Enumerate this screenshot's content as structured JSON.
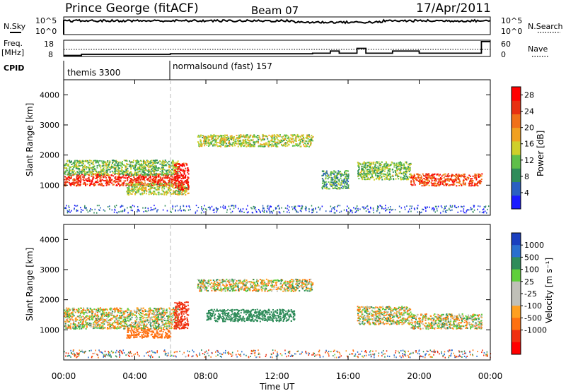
{
  "header": {
    "station": "Prince George (fitACF)",
    "beam": "Beam 07",
    "date": "17/Apr/2011"
  },
  "top_panel": {
    "left_label": "N.Sky",
    "right_label": "N.Search",
    "ticks": [
      "10^5",
      "10^0"
    ]
  },
  "freq_panel": {
    "left_label_1": "Freq.",
    "left_label_2": "[MHz]",
    "left_ticks": [
      "18",
      "8"
    ],
    "right_label": "Nave",
    "right_ticks": [
      "60",
      "0"
    ]
  },
  "cpid": {
    "label": "CPID",
    "modes": [
      "themis 3300",
      "normalsound (fast) 157"
    ]
  },
  "colors": {
    "power": [
      "#1a1aff",
      "#2a5fc2",
      "#2f8c5a",
      "#5fbf4a",
      "#cfcf2a",
      "#f0a020",
      "#f07018",
      "#e83010",
      "#ff0000"
    ],
    "velocity": [
      "#1a3fbf",
      "#2a6fcf",
      "#2f8c5a",
      "#5fcf3a",
      "#c0c0b8",
      "#c0c0b8",
      "#ffa020",
      "#ff7010",
      "#f03010",
      "#ff0000"
    ]
  },
  "chart_data": [
    {
      "type": "heatmap",
      "title": "",
      "xlabel": "",
      "ylabel": "Slant Range [km]",
      "x_ticks": [
        "00:00",
        "04:00",
        "08:00",
        "12:00",
        "16:00",
        "20:00",
        "00:00"
      ],
      "y_ticks": [
        "1000",
        "2000",
        "3000",
        "4000"
      ],
      "ylim": [
        0,
        4500
      ],
      "colorbar": {
        "label": "Power [dB]",
        "ticks": [
          "4",
          "8",
          "12",
          "16",
          "20",
          "24",
          "28"
        ],
        "range": [
          0,
          30
        ]
      },
      "bands": [
        {
          "x_start": 0.0,
          "x_end": 6.4,
          "range_center": 1200,
          "range_width": 400,
          "power_db": 26
        },
        {
          "x_start": 0.0,
          "x_end": 6.4,
          "range_center": 1600,
          "range_width": 500,
          "power_db": 12
        },
        {
          "x_start": 3.5,
          "x_end": 7.0,
          "range_center": 900,
          "range_width": 400,
          "power_db": 14
        },
        {
          "x_start": 6.2,
          "x_end": 7.0,
          "range_center": 1300,
          "range_width": 900,
          "power_db": 27
        },
        {
          "x_start": 7.5,
          "x_end": 14.0,
          "range_center": 2500,
          "range_width": 400,
          "power_db": 14
        },
        {
          "x_start": 14.5,
          "x_end": 16.0,
          "range_center": 1200,
          "range_width": 600,
          "power_db": 10
        },
        {
          "x_start": 16.5,
          "x_end": 19.5,
          "range_center": 1500,
          "range_width": 600,
          "power_db": 12
        },
        {
          "x_start": 19.5,
          "x_end": 23.5,
          "range_center": 1200,
          "range_width": 400,
          "power_db": 24
        }
      ]
    },
    {
      "type": "heatmap",
      "title": "",
      "xlabel": "Time UT",
      "ylabel": "Slant Range [km]",
      "x_ticks": [
        "00:00",
        "04:00",
        "08:00",
        "12:00",
        "16:00",
        "20:00",
        "00:00"
      ],
      "y_ticks": [
        "1000",
        "2000",
        "3000",
        "4000"
      ],
      "ylim": [
        0,
        4500
      ],
      "colorbar": {
        "label": "Velocity [m s⁻¹]",
        "ticks": [
          "1000",
          "500",
          "100",
          "25",
          "-25",
          "-100",
          "-500",
          "-1000"
        ],
        "range": [
          -1000,
          1000
        ]
      },
      "bands": [
        {
          "x_start": 0.0,
          "x_end": 6.4,
          "range_center": 1400,
          "range_width": 700,
          "velocity": 0
        },
        {
          "x_start": 3.5,
          "x_end": 6.0,
          "range_center": 900,
          "range_width": 300,
          "velocity": -300
        },
        {
          "x_start": 6.2,
          "x_end": 7.0,
          "range_center": 1500,
          "range_width": 900,
          "velocity": -700
        },
        {
          "x_start": 7.5,
          "x_end": 14.0,
          "range_center": 2500,
          "range_width": 400,
          "velocity": 0
        },
        {
          "x_start": 8.0,
          "x_end": 13.0,
          "range_center": 1500,
          "range_width": 400,
          "velocity": 300
        },
        {
          "x_start": 16.5,
          "x_end": 19.5,
          "range_center": 1500,
          "range_width": 600,
          "velocity": 0
        },
        {
          "x_start": 19.5,
          "x_end": 23.5,
          "range_center": 1300,
          "range_width": 500,
          "velocity": 0
        }
      ]
    }
  ]
}
